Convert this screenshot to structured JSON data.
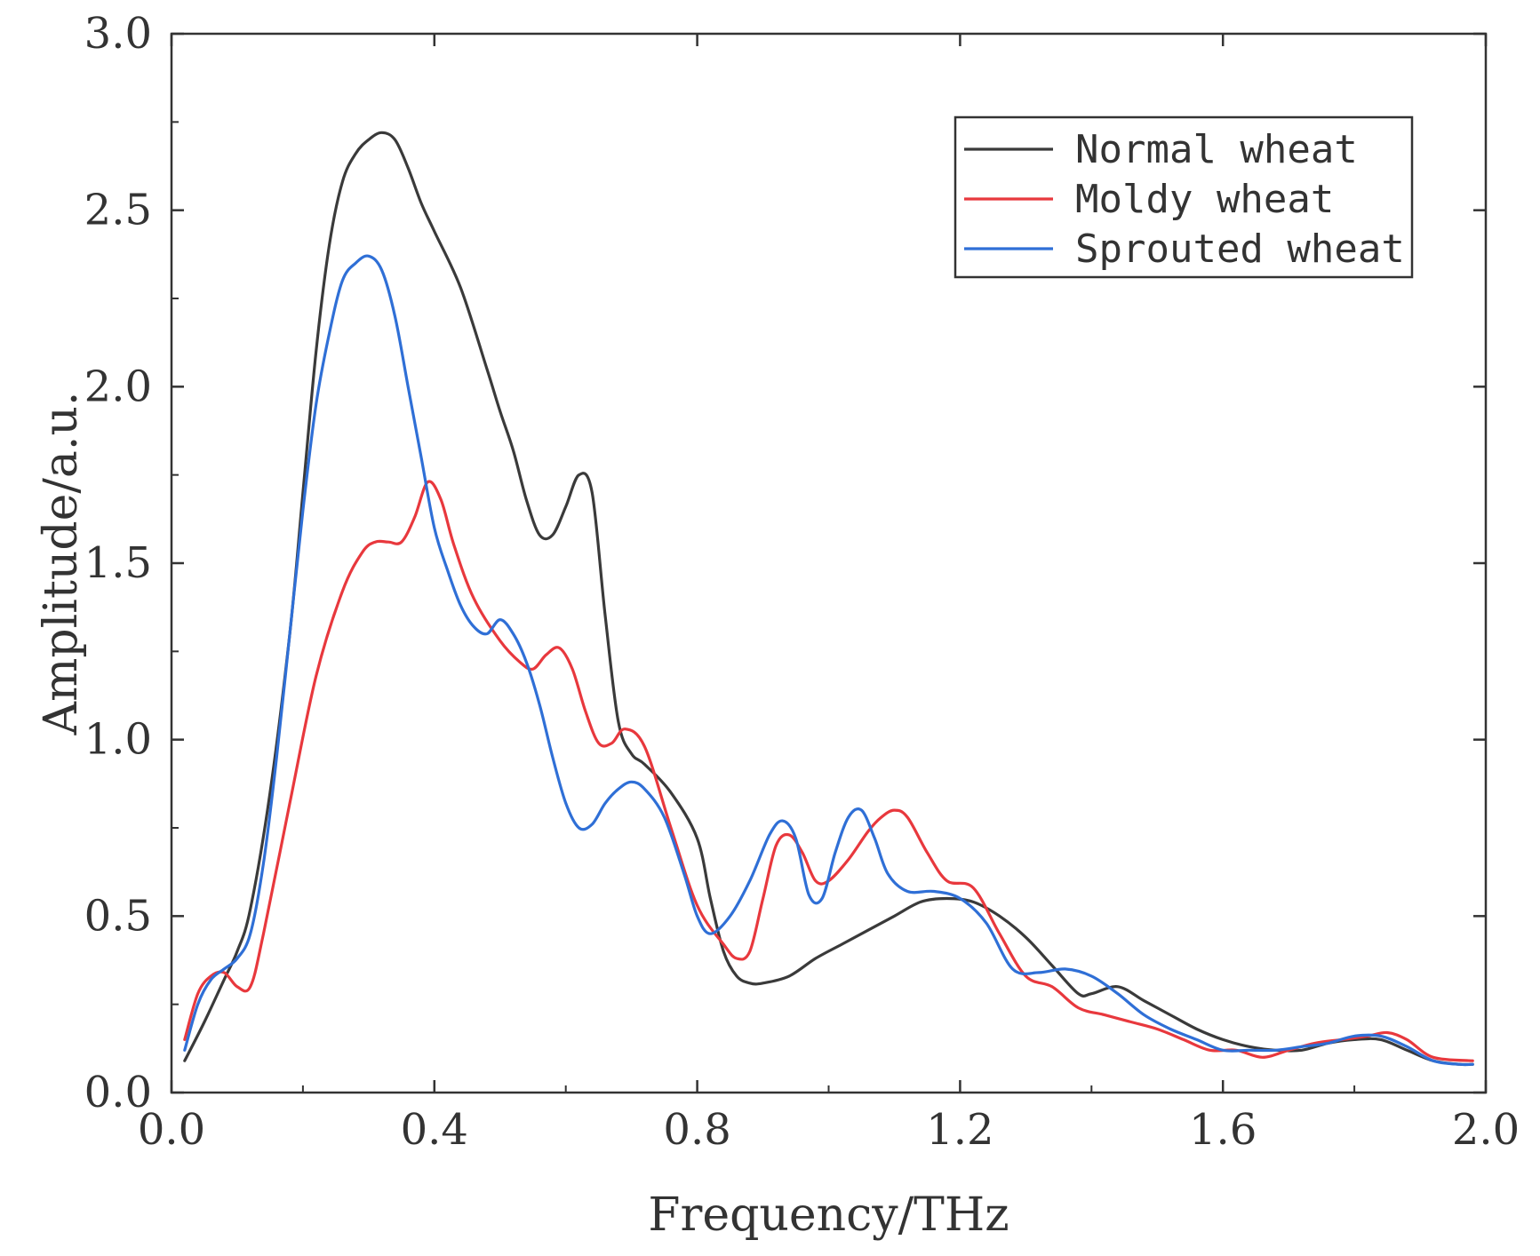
{
  "chart_data": {
    "type": "line",
    "title": "",
    "xlabel": "Frequency/THz",
    "ylabel": "Amplitude/a.u.",
    "xlim": [
      0.0,
      2.0
    ],
    "ylim": [
      0.0,
      3.0
    ],
    "xticks": [
      "0.0",
      "0.4",
      "0.8",
      "1.2",
      "1.6",
      "2.0"
    ],
    "yticks": [
      "0.0",
      "0.5",
      "1.0",
      "1.5",
      "2.0",
      "2.5",
      "3.0"
    ],
    "legend_position": "top-right",
    "grid": false,
    "series": [
      {
        "name": "Normal wheat",
        "color": "#3a3a3a",
        "x": [
          0.02,
          0.05,
          0.08,
          0.1,
          0.12,
          0.15,
          0.18,
          0.2,
          0.22,
          0.24,
          0.26,
          0.28,
          0.3,
          0.32,
          0.34,
          0.36,
          0.38,
          0.4,
          0.44,
          0.48,
          0.5,
          0.52,
          0.54,
          0.56,
          0.58,
          0.6,
          0.62,
          0.64,
          0.66,
          0.68,
          0.7,
          0.72,
          0.76,
          0.8,
          0.82,
          0.84,
          0.86,
          0.88,
          0.9,
          0.94,
          0.98,
          1.02,
          1.06,
          1.1,
          1.14,
          1.18,
          1.22,
          1.26,
          1.3,
          1.34,
          1.38,
          1.4,
          1.44,
          1.48,
          1.52,
          1.56,
          1.6,
          1.64,
          1.68,
          1.72,
          1.76,
          1.8,
          1.84,
          1.88,
          1.92,
          1.96,
          1.98
        ],
        "values": [
          0.09,
          0.2,
          0.32,
          0.4,
          0.52,
          0.85,
          1.3,
          1.7,
          2.1,
          2.4,
          2.58,
          2.66,
          2.7,
          2.72,
          2.7,
          2.62,
          2.52,
          2.44,
          2.28,
          2.05,
          1.93,
          1.82,
          1.68,
          1.58,
          1.58,
          1.66,
          1.75,
          1.7,
          1.35,
          1.05,
          0.96,
          0.93,
          0.85,
          0.72,
          0.55,
          0.4,
          0.33,
          0.31,
          0.31,
          0.33,
          0.38,
          0.42,
          0.46,
          0.5,
          0.54,
          0.55,
          0.54,
          0.5,
          0.44,
          0.36,
          0.28,
          0.28,
          0.3,
          0.26,
          0.22,
          0.18,
          0.15,
          0.13,
          0.12,
          0.12,
          0.14,
          0.15,
          0.15,
          0.12,
          0.09,
          0.08,
          0.08
        ]
      },
      {
        "name": "Moldy wheat",
        "color": "#e8383d",
        "x": [
          0.02,
          0.04,
          0.06,
          0.08,
          0.1,
          0.12,
          0.14,
          0.18,
          0.22,
          0.26,
          0.29,
          0.31,
          0.33,
          0.35,
          0.37,
          0.39,
          0.41,
          0.43,
          0.46,
          0.5,
          0.53,
          0.55,
          0.57,
          0.59,
          0.61,
          0.63,
          0.65,
          0.67,
          0.69,
          0.72,
          0.76,
          0.8,
          0.84,
          0.86,
          0.88,
          0.9,
          0.92,
          0.94,
          0.96,
          0.98,
          1.0,
          1.03,
          1.06,
          1.08,
          1.1,
          1.12,
          1.15,
          1.18,
          1.22,
          1.26,
          1.3,
          1.34,
          1.38,
          1.42,
          1.46,
          1.5,
          1.54,
          1.58,
          1.62,
          1.66,
          1.7,
          1.74,
          1.78,
          1.82,
          1.85,
          1.88,
          1.92,
          1.98
        ],
        "values": [
          0.15,
          0.28,
          0.33,
          0.34,
          0.3,
          0.3,
          0.45,
          0.82,
          1.18,
          1.42,
          1.53,
          1.56,
          1.56,
          1.56,
          1.63,
          1.73,
          1.68,
          1.55,
          1.4,
          1.28,
          1.22,
          1.2,
          1.24,
          1.26,
          1.2,
          1.08,
          0.99,
          0.99,
          1.03,
          0.98,
          0.75,
          0.53,
          0.42,
          0.38,
          0.4,
          0.55,
          0.7,
          0.73,
          0.68,
          0.6,
          0.6,
          0.66,
          0.74,
          0.78,
          0.8,
          0.78,
          0.68,
          0.6,
          0.58,
          0.45,
          0.33,
          0.3,
          0.24,
          0.22,
          0.2,
          0.18,
          0.15,
          0.12,
          0.12,
          0.1,
          0.12,
          0.14,
          0.15,
          0.16,
          0.17,
          0.15,
          0.1,
          0.09
        ]
      },
      {
        "name": "Sprouted wheat",
        "color": "#2f6fd6",
        "x": [
          0.02,
          0.04,
          0.06,
          0.08,
          0.1,
          0.12,
          0.14,
          0.16,
          0.18,
          0.2,
          0.22,
          0.24,
          0.26,
          0.28,
          0.3,
          0.32,
          0.34,
          0.36,
          0.38,
          0.4,
          0.42,
          0.44,
          0.46,
          0.48,
          0.5,
          0.52,
          0.54,
          0.56,
          0.58,
          0.6,
          0.62,
          0.64,
          0.66,
          0.68,
          0.7,
          0.72,
          0.75,
          0.78,
          0.8,
          0.82,
          0.85,
          0.88,
          0.91,
          0.93,
          0.95,
          0.97,
          0.99,
          1.01,
          1.03,
          1.05,
          1.07,
          1.09,
          1.12,
          1.16,
          1.2,
          1.24,
          1.28,
          1.32,
          1.36,
          1.4,
          1.44,
          1.48,
          1.52,
          1.56,
          1.6,
          1.64,
          1.68,
          1.72,
          1.76,
          1.8,
          1.84,
          1.88,
          1.92,
          1.96,
          1.98
        ],
        "values": [
          0.12,
          0.25,
          0.32,
          0.35,
          0.38,
          0.45,
          0.65,
          0.95,
          1.3,
          1.65,
          1.95,
          2.15,
          2.3,
          2.35,
          2.37,
          2.33,
          2.2,
          2.0,
          1.8,
          1.6,
          1.48,
          1.38,
          1.32,
          1.3,
          1.34,
          1.3,
          1.22,
          1.1,
          0.95,
          0.82,
          0.75,
          0.76,
          0.82,
          0.86,
          0.88,
          0.86,
          0.78,
          0.62,
          0.5,
          0.45,
          0.5,
          0.6,
          0.73,
          0.77,
          0.72,
          0.56,
          0.55,
          0.68,
          0.78,
          0.8,
          0.72,
          0.62,
          0.57,
          0.57,
          0.55,
          0.48,
          0.35,
          0.34,
          0.35,
          0.33,
          0.28,
          0.22,
          0.18,
          0.15,
          0.12,
          0.12,
          0.12,
          0.13,
          0.14,
          0.16,
          0.16,
          0.13,
          0.09,
          0.08,
          0.08
        ]
      }
    ]
  }
}
